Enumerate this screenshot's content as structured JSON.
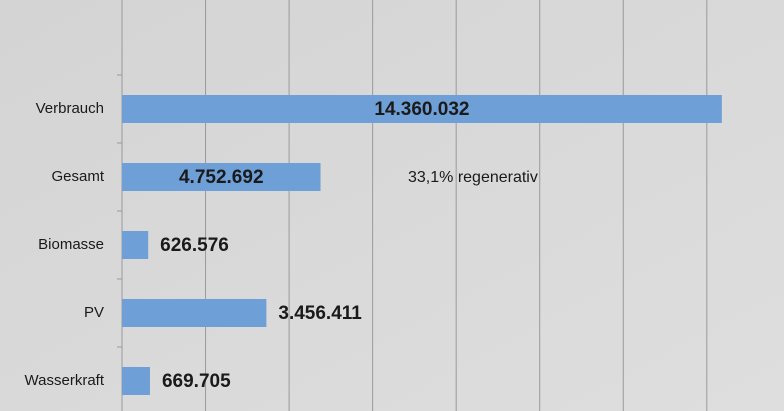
{
  "chart_data": {
    "type": "hbar",
    "categories": [
      "Verbrauch",
      "Gesamt",
      "Biomasse",
      "PV",
      "Wasserkraft"
    ],
    "values": [
      14360032,
      4752692,
      626576,
      3456411,
      669705
    ],
    "value_labels": [
      "14.360.032",
      "4.752.692",
      "626.576",
      "3.456.411",
      "669.705"
    ],
    "color": "#6e9fd6",
    "xlim": [
      0,
      15800000
    ],
    "xticks": [
      0,
      2000000,
      4000000,
      6000000,
      8000000,
      10000000,
      12000000,
      14000000
    ],
    "grid": true,
    "annotation": "33,1% regenerativ"
  }
}
